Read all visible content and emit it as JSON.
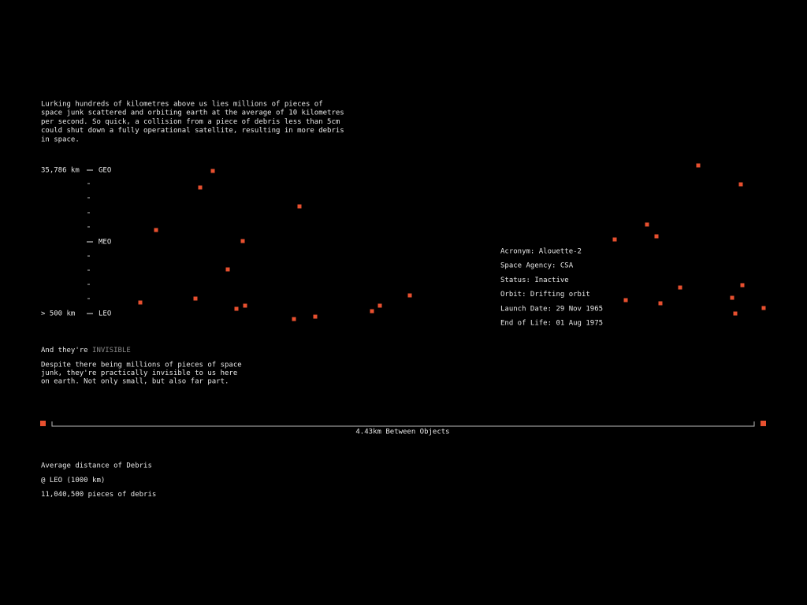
{
  "intro": [
    "Lurking hundreds of kilometres above us lies millions of pieces of",
    "space junk scattered and orbiting earth at the average of 10 kilometres",
    "per second. So quick, a collision from a piece of debris less than 5cm",
    "could shut down a fully operational satellite, resulting in more debris",
    "in space."
  ],
  "orbit_axis": {
    "top_altitude": "35,786 km",
    "top_orbit": "GEO",
    "middle_orbit": "MEO",
    "bottom_altitude": "> 500 km",
    "bottom_orbit": "LEO"
  },
  "invisible": {
    "heading": "And they're",
    "highlight": "INVISIBLE",
    "body": [
      "Despite there being millions of pieces of space",
      "junk, they're practically invisible to us here",
      "on earth. Not only small, but also far part."
    ]
  },
  "object_info": [
    "Acronym: Alouette-2",
    "Space Agency: CSA",
    "Status: Inactive",
    "Orbit: Drifting orbit",
    "Launch Date: 29 Nov 1965",
    "End of Life: 01 Aug 1975"
  ],
  "scale_label": "4.43km Between Objects",
  "summary": [
    "Average distance of Debris",
    "@ LEO (1000 km)",
    "11,040,500 pieces of debris"
  ]
}
